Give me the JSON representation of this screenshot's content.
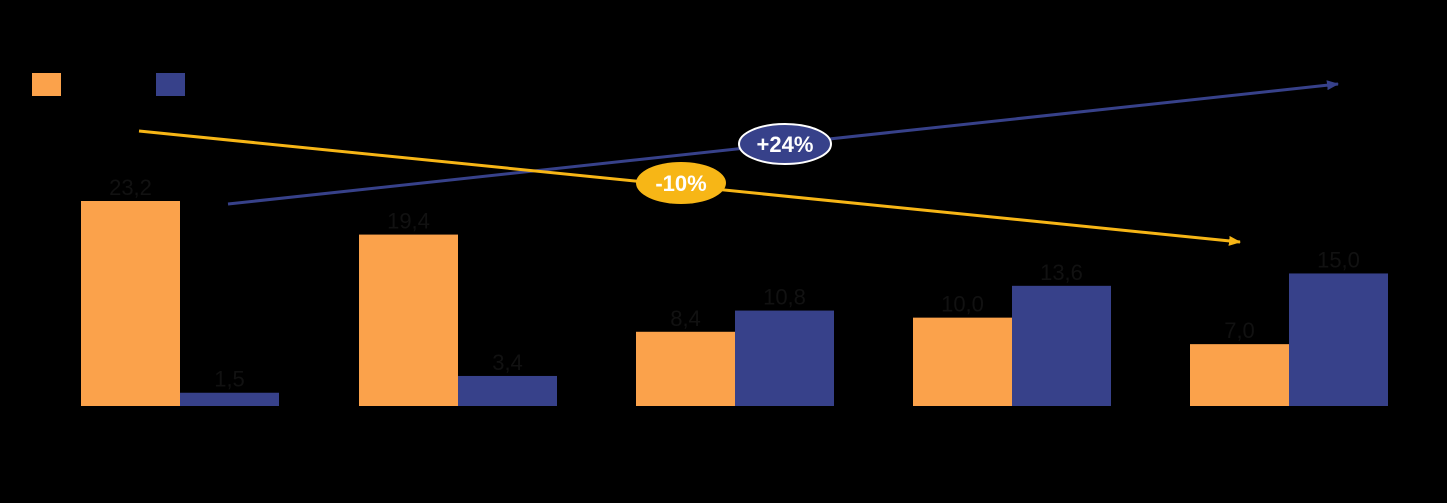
{
  "colors": {
    "background": "#000000",
    "orange": "#FBA24B",
    "navy": "#37418A",
    "trend_orange": "#F7B616",
    "trend_navy": "#37418A",
    "value_label": "#111111"
  },
  "legend": {
    "items": [
      {
        "name": "",
        "color": "#FBA24B"
      },
      {
        "name": "",
        "color": "#37418A"
      }
    ]
  },
  "chart_data": {
    "type": "bar",
    "title": "",
    "xlabel": "",
    "ylabel": "",
    "categories": [
      "",
      "",
      "",
      "",
      ""
    ],
    "ylim": [
      0,
      23.2
    ],
    "series": [
      {
        "color": "#FBA24B",
        "values": [
          23.2,
          19.4,
          8.4,
          10.0,
          7.0
        ],
        "labels": [
          "23,2",
          "19,4",
          "8,4",
          "10,0",
          "7,0"
        ]
      },
      {
        "color": "#37418A",
        "values": [
          1.5,
          3.4,
          10.8,
          13.6,
          15.0
        ],
        "labels": [
          "1,5",
          "3,4",
          "10,8",
          "13,6",
          "15,0"
        ]
      }
    ],
    "annotations": [
      {
        "text": "+24%",
        "series": 1,
        "direction": "up"
      },
      {
        "text": "-10%",
        "series": 0,
        "direction": "down"
      }
    ]
  }
}
